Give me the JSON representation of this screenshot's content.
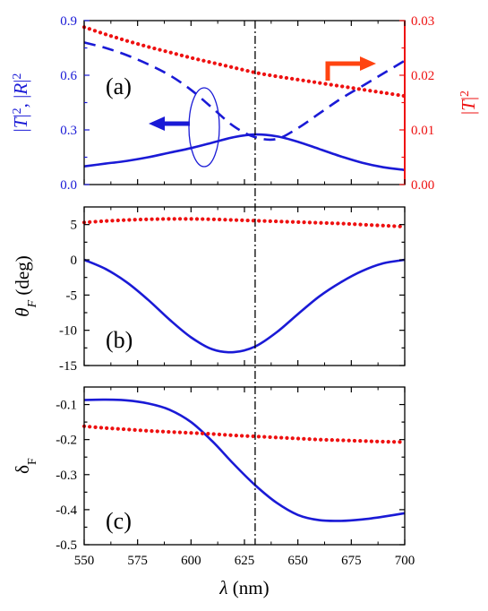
{
  "chart_data": [
    {
      "type": "line",
      "panel_label": "(a)",
      "xlim": [
        550,
        700
      ],
      "ylim": [
        0.0,
        0.9
      ],
      "ylabel_parts": [
        "|",
        "T",
        "|",
        "2",
        ", |",
        "R",
        "|",
        "2"
      ],
      "right_ylim": [
        0.0,
        0.03
      ],
      "right_ylabel_parts": [
        "|",
        "T",
        "|",
        "2"
      ],
      "yticks": [
        "0.0",
        "0.3",
        "0.6",
        "0.9"
      ],
      "right_yticks": [
        "0.00",
        "0.01",
        "0.02",
        "0.03"
      ],
      "reference_line_x": 630,
      "colors": {
        "blue": "#1a1ad6",
        "red": "#ee1111",
        "arrow_orange": "#ff4411"
      },
      "series": [
        {
          "key": "T2",
          "axis": "left",
          "style": "solid",
          "color": "#1a1ad6",
          "x": [
            550,
            560,
            570,
            580,
            590,
            600,
            610,
            620,
            630,
            640,
            650,
            660,
            670,
            680,
            690,
            700
          ],
          "y": [
            0.1,
            0.115,
            0.13,
            0.15,
            0.175,
            0.2,
            0.23,
            0.26,
            0.275,
            0.265,
            0.235,
            0.195,
            0.155,
            0.12,
            0.095,
            0.08
          ]
        },
        {
          "key": "R2",
          "axis": "left",
          "style": "dashed",
          "color": "#1a1ad6",
          "x": [
            550,
            560,
            570,
            580,
            590,
            600,
            610,
            620,
            630,
            640,
            650,
            660,
            670,
            680,
            690,
            700
          ],
          "y": [
            0.78,
            0.75,
            0.71,
            0.66,
            0.6,
            0.52,
            0.42,
            0.32,
            0.26,
            0.25,
            0.31,
            0.39,
            0.47,
            0.54,
            0.61,
            0.68
          ]
        },
        {
          "key": "T2_right",
          "axis": "right",
          "style": "dotted",
          "color": "#ee1111",
          "x": [
            550,
            560,
            570,
            580,
            590,
            600,
            610,
            620,
            630,
            640,
            650,
            660,
            670,
            680,
            690,
            700
          ],
          "y": [
            0.0288,
            0.0275,
            0.0263,
            0.0252,
            0.0242,
            0.0232,
            0.0223,
            0.0214,
            0.0205,
            0.0198,
            0.0192,
            0.0186,
            0.018,
            0.0174,
            0.0168,
            0.0162
          ]
        }
      ]
    },
    {
      "type": "line",
      "panel_label": "(b)",
      "xlim": [
        550,
        700
      ],
      "ylim": [
        -15,
        7.5
      ],
      "yticks": [
        "5",
        "0",
        "-5",
        "-10",
        "-15"
      ],
      "ylabel_main": "θ",
      "ylabel_sub": "F",
      "ylabel_unit": "(deg)",
      "series": [
        {
          "key": "theta_red",
          "style": "dotted",
          "color": "#ee1111",
          "x": [
            550,
            560,
            570,
            580,
            590,
            600,
            610,
            620,
            630,
            640,
            650,
            660,
            670,
            680,
            690,
            700
          ],
          "y": [
            5.3,
            5.5,
            5.65,
            5.75,
            5.8,
            5.8,
            5.75,
            5.65,
            5.55,
            5.45,
            5.35,
            5.25,
            5.15,
            5.0,
            4.85,
            4.7
          ]
        },
        {
          "key": "theta_blue",
          "style": "solid",
          "color": "#1a1ad6",
          "x": [
            550,
            560,
            570,
            580,
            590,
            600,
            610,
            620,
            630,
            640,
            650,
            660,
            670,
            680,
            690,
            700
          ],
          "y": [
            0.0,
            -1.3,
            -3.2,
            -5.7,
            -8.5,
            -11.0,
            -12.7,
            -13.1,
            -12.3,
            -10.3,
            -7.7,
            -5.2,
            -3.2,
            -1.6,
            -0.5,
            0.0
          ]
        }
      ]
    },
    {
      "type": "line",
      "panel_label": "(c)",
      "xlim": [
        550,
        700
      ],
      "ylim": [
        -0.5,
        -0.05
      ],
      "yticks": [
        "-0.1",
        "-0.2",
        "-0.3",
        "-0.4",
        "-0.5"
      ],
      "xticks": [
        "550",
        "575",
        "600",
        "625",
        "650",
        "675",
        "700"
      ],
      "ylabel_main": "δ",
      "ylabel_sub": "F",
      "xlabel_symbol": "λ",
      "xlabel_unit": "(nm)",
      "series": [
        {
          "key": "delta_blue",
          "style": "solid",
          "color": "#1a1ad6",
          "x": [
            550,
            560,
            570,
            580,
            590,
            600,
            610,
            620,
            630,
            640,
            650,
            660,
            670,
            680,
            690,
            700
          ],
          "y": [
            -0.087,
            -0.086,
            -0.088,
            -0.097,
            -0.115,
            -0.15,
            -0.205,
            -0.27,
            -0.33,
            -0.38,
            -0.415,
            -0.43,
            -0.432,
            -0.428,
            -0.42,
            -0.41
          ]
        },
        {
          "key": "delta_red",
          "style": "dotted",
          "color": "#ee1111",
          "x": [
            550,
            560,
            570,
            580,
            590,
            600,
            610,
            620,
            630,
            640,
            650,
            660,
            670,
            680,
            690,
            700
          ],
          "y": [
            -0.162,
            -0.167,
            -0.171,
            -0.175,
            -0.178,
            -0.181,
            -0.184,
            -0.188,
            -0.191,
            -0.194,
            -0.197,
            -0.2,
            -0.202,
            -0.204,
            -0.206,
            -0.207
          ]
        }
      ]
    }
  ]
}
